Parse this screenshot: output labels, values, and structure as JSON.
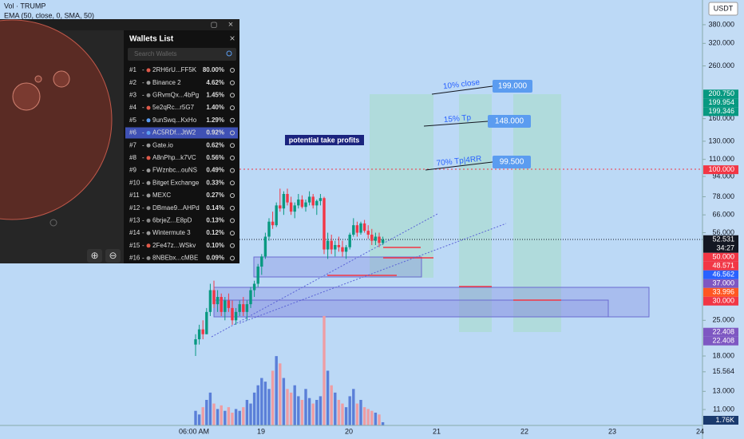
{
  "header": {
    "symbol": "Vol · TRUMP",
    "indicator": "EMA (50, close, 0, SMA, 50)"
  },
  "wallets_panel": {
    "title": "Wallets List",
    "search_placeholder": "Search Wallets",
    "wallets": [
      {
        "rank": "#1",
        "name": "2RH6rU...FF5K",
        "share": "80.00%"
      },
      {
        "rank": "#2",
        "name": "Binance 2",
        "share": "4.62%"
      },
      {
        "rank": "#3",
        "name": "GRvmQx...4bPg",
        "share": "1.45%"
      },
      {
        "rank": "#4",
        "name": "5e2qRc...r5G7",
        "share": "1.40%"
      },
      {
        "rank": "#5",
        "name": "9unSwq...KxHo",
        "share": "1.29%"
      },
      {
        "rank": "#6",
        "name": "AC5RDf...JtW2",
        "share": "0.92%"
      },
      {
        "rank": "#7",
        "name": "Gate.io",
        "share": "0.62%"
      },
      {
        "rank": "#8",
        "name": "A8nPhp...k7VC",
        "share": "0.56%"
      },
      {
        "rank": "#9",
        "name": "FWznbc...ouNS",
        "share": "0.49%"
      },
      {
        "rank": "#10",
        "name": "Bitget Exchange",
        "share": "0.33%"
      },
      {
        "rank": "#11",
        "name": "MEXC",
        "share": "0.27%"
      },
      {
        "rank": "#12",
        "name": "DBmae9...AHPd",
        "share": "0.14%"
      },
      {
        "rank": "#13",
        "name": "6brjeZ...E8pD",
        "share": "0.13%"
      },
      {
        "rank": "#14",
        "name": "Wintermute 3",
        "share": "0.12%"
      },
      {
        "rank": "#15",
        "name": "2Fe47z...WSkv",
        "share": "0.10%"
      },
      {
        "rank": "#16",
        "name": "8NBEbx...cMBE",
        "share": "0.09%"
      }
    ]
  },
  "chart_data": {
    "type": "candlestick",
    "currency": "USDT",
    "log_scale": true,
    "ylim": [
      9.5,
      477
    ],
    "yticks": [
      {
        "value": 380,
        "label": "380.000"
      },
      {
        "value": 320,
        "label": "320.000"
      },
      {
        "value": 260,
        "label": "260.000"
      },
      {
        "value": 160,
        "label": "160.000"
      },
      {
        "value": 130,
        "label": "130.000"
      },
      {
        "value": 110,
        "label": "110.000"
      },
      {
        "value": 94,
        "label": "94.000"
      },
      {
        "value": 78,
        "label": "78.000"
      },
      {
        "value": 66,
        "label": "66.000"
      },
      {
        "value": 56,
        "label": "56.000"
      },
      {
        "value": 25,
        "label": "25.000"
      },
      {
        "value": 18,
        "label": "18.000"
      },
      {
        "value": 15.564,
        "label": "15.564"
      },
      {
        "value": 13,
        "label": "13.000"
      },
      {
        "value": 11,
        "label": "11.000"
      }
    ],
    "up_color": "#089981",
    "down_color": "#f23645",
    "volume_up_color": "#5a7fd8",
    "volume_down_color": "#ee9da3",
    "ohlc": [
      [
        20,
        22,
        18,
        21
      ],
      [
        21,
        24,
        20,
        23
      ],
      [
        23,
        25,
        21,
        22
      ],
      [
        22,
        28,
        22,
        27
      ],
      [
        27,
        35,
        26,
        33
      ],
      [
        33,
        36,
        28,
        29
      ],
      [
        29,
        33,
        27,
        31
      ],
      [
        31,
        32,
        26,
        27
      ],
      [
        27,
        31,
        25,
        30
      ],
      [
        30,
        32,
        27,
        28
      ],
      [
        28,
        30,
        24,
        25
      ],
      [
        25,
        28,
        24,
        27
      ],
      [
        27,
        30,
        26,
        29
      ],
      [
        29,
        31,
        26,
        27
      ],
      [
        27,
        30,
        25,
        29
      ],
      [
        29,
        34,
        28,
        33
      ],
      [
        33,
        36,
        31,
        35
      ],
      [
        35,
        42,
        34,
        41
      ],
      [
        41,
        46,
        38,
        45
      ],
      [
        45,
        56,
        44,
        54
      ],
      [
        54,
        64,
        52,
        62
      ],
      [
        62,
        68,
        58,
        60
      ],
      [
        60,
        74,
        59,
        72
      ],
      [
        72,
        84,
        68,
        70
      ],
      [
        70,
        82,
        66,
        80
      ],
      [
        80,
        84,
        72,
        74
      ],
      [
        74,
        78,
        66,
        68
      ],
      [
        68,
        74,
        64,
        72
      ],
      [
        72,
        80,
        70,
        76
      ],
      [
        76,
        79,
        70,
        71
      ],
      [
        71,
        76,
        68,
        74
      ],
      [
        74,
        82,
        72,
        78
      ],
      [
        78,
        80,
        70,
        72
      ],
      [
        72,
        76,
        66,
        75
      ],
      [
        75,
        80,
        72,
        77
      ],
      [
        77,
        78,
        46,
        48
      ],
      [
        48,
        56,
        44,
        52
      ],
      [
        52,
        55,
        46,
        48
      ],
      [
        48,
        52,
        45,
        50
      ],
      [
        50,
        54,
        47,
        49
      ],
      [
        49,
        52,
        45,
        47
      ],
      [
        47,
        50,
        44,
        49
      ],
      [
        49,
        56,
        48,
        55
      ],
      [
        55,
        64,
        54,
        60
      ],
      [
        60,
        62,
        54,
        56
      ],
      [
        56,
        62,
        55,
        61
      ],
      [
        61,
        63,
        56,
        57
      ],
      [
        57,
        60,
        53,
        55
      ],
      [
        55,
        58,
        50,
        52
      ],
      [
        52,
        56,
        50,
        54
      ],
      [
        54,
        56,
        49,
        51
      ],
      [
        51,
        54,
        50,
        52.531
      ]
    ],
    "volume": [
      8,
      6,
      10,
      14,
      18,
      12,
      9,
      11,
      8,
      10,
      7,
      9,
      8,
      10,
      14,
      12,
      18,
      22,
      26,
      24,
      20,
      30,
      38,
      34,
      26,
      20,
      18,
      22,
      16,
      14,
      20,
      15,
      12,
      14,
      16,
      60,
      30,
      22,
      18,
      14,
      12,
      10,
      16,
      20,
      12,
      14,
      10,
      9,
      8,
      7,
      6,
      1.76
    ],
    "volume_tag": "1.76K",
    "price_tags": [
      {
        "value": 200.75,
        "label": "200.750",
        "color": "#089981"
      },
      {
        "value": 199.954,
        "label": "199.954",
        "color": "#089981"
      },
      {
        "value": 199.346,
        "label": "199.346",
        "color": "#089981"
      },
      {
        "value": 100,
        "label": "100.000",
        "color": "#f23645"
      },
      {
        "value": 52.531,
        "label": "52.531",
        "color": "#131722",
        "countdown": "34:27"
      },
      {
        "value": 50,
        "label": "50.000",
        "color": "#f23645"
      },
      {
        "value": 48.571,
        "label": "48.571",
        "color": "#f23645"
      },
      {
        "value": 46.562,
        "label": "46.562",
        "color": "#2962ff"
      },
      {
        "value": 37,
        "label": "37.000",
        "color": "#7e57c2"
      },
      {
        "value": 33.996,
        "label": "33.996",
        "color": "#ff5722"
      },
      {
        "value": 30,
        "label": "30.000",
        "color": "#f23645"
      },
      {
        "value": 22.408,
        "label": "22.408",
        "color": "#7e57c2"
      },
      {
        "value": 22.408,
        "label": "22.408",
        "color": "#7e57c2"
      }
    ],
    "time_labels": [
      "06:00 AM",
      "19",
      "20",
      "21",
      "22",
      "23",
      "24"
    ],
    "annotations": [
      {
        "text": "10% close",
        "target": "199.000"
      },
      {
        "text": "15% Tp",
        "target": "148.000"
      },
      {
        "text": "70% Tp|4RR",
        "target": "99.500"
      }
    ],
    "note": "potential take profits"
  }
}
